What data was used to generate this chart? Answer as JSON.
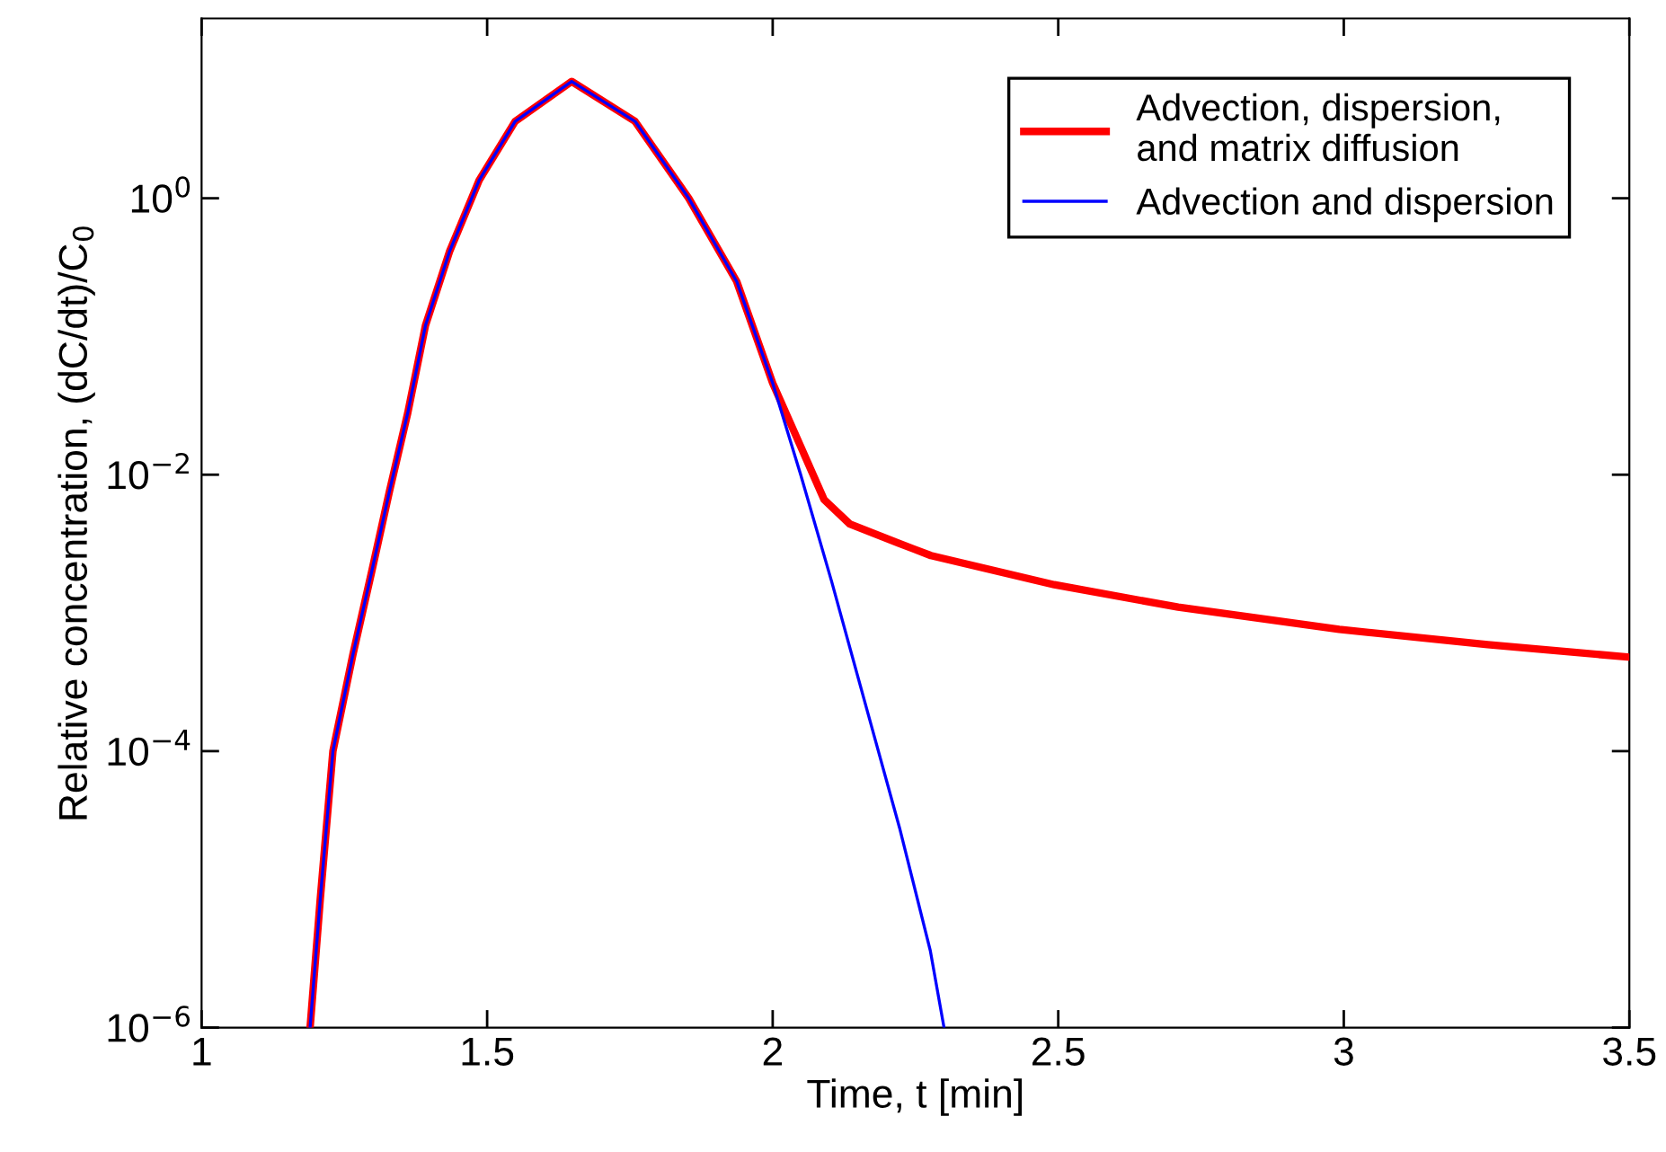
{
  "chart_data": {
    "type": "line",
    "xlabel": "Time, t [min]",
    "ylabel": "Relative concentration, (dC/dt)/C$_{0}$",
    "log": "y",
    "xlim": [
      1,
      3.5
    ],
    "ylim": [
      1e-06,
      20
    ],
    "xticks": [
      1,
      1.5,
      2,
      2.5,
      3,
      3.5
    ],
    "yticks": [
      {
        "value": 1e-06,
        "label": "10$^{−6}$"
      },
      {
        "value": 0.0001,
        "label": "10$^{−4}$"
      },
      {
        "value": 0.01,
        "label": "10$^{−2}$"
      },
      {
        "value": 1,
        "label": "10$^{0}$"
      }
    ],
    "grid": false,
    "legend": "top right",
    "line_style": "solid",
    "marker": "none",
    "series": [
      {
        "name": "Advection, dispersion,\nand matrix diffusion",
        "color": "#ff0000",
        "x": [
          1.19,
          1.208,
          1.23,
          1.265,
          1.298,
          1.329,
          1.361,
          1.392,
          1.434,
          1.486,
          1.549,
          1.648,
          1.759,
          1.853,
          1.937,
          2.0,
          2.052,
          2.09,
          2.135,
          2.22,
          2.277,
          2.493,
          2.71,
          2.992,
          3.252,
          3.496
        ],
        "values": [
          1e-06,
          8.7e-06,
          0.0001,
          0.0005,
          0.002,
          0.0076,
          0.028,
          0.12,
          0.41,
          1.35,
          3.6,
          7.0,
          3.6,
          1.0,
          0.25,
          0.046,
          0.015,
          0.0066,
          0.0044,
          0.0032,
          0.0026,
          0.0016,
          0.0011,
          0.00076,
          0.00059,
          0.00048
        ]
      },
      {
        "name": "Advection and dispersion",
        "color": "#0000ff",
        "x": [
          1.19,
          1.208,
          1.23,
          1.265,
          1.298,
          1.329,
          1.361,
          1.392,
          1.434,
          1.486,
          1.549,
          1.648,
          1.759,
          1.853,
          1.937,
          2.0,
          2.049,
          2.103,
          2.168,
          2.222,
          2.276,
          2.3
        ],
        "values": [
          1e-06,
          8.7e-06,
          0.0001,
          0.0005,
          0.002,
          0.0076,
          0.028,
          0.12,
          0.41,
          1.35,
          3.6,
          7.0,
          3.6,
          1.0,
          0.25,
          0.046,
          0.01,
          0.0017,
          0.00018,
          2.8e-05,
          3.6e-06,
          1e-06
        ]
      }
    ]
  }
}
